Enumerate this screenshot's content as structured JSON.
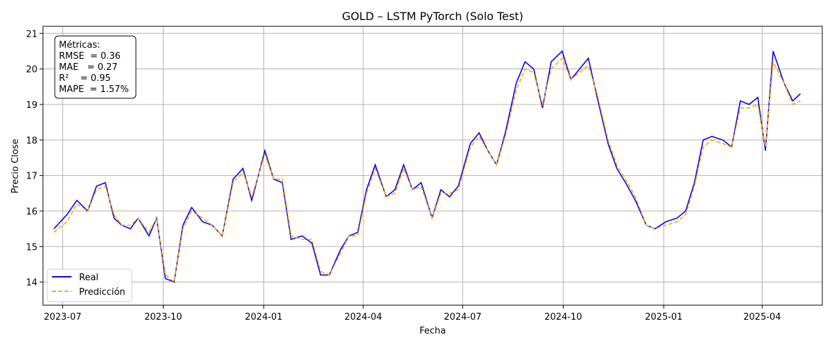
{
  "chart_data": {
    "type": "line",
    "title": "GOLD – LSTM PyTorch (Solo Test)",
    "xlabel": "Fecha",
    "ylabel": "Precio Close",
    "xlim": [
      "2023-06-13",
      "2025-05-26"
    ],
    "ylim": [
      13.35,
      21.2
    ],
    "x_ticks": [
      "2023-07-01",
      "2023-10-01",
      "2024-01-01",
      "2024-04-01",
      "2024-07-01",
      "2024-10-01",
      "2025-01-01",
      "2025-04-01"
    ],
    "x_tick_labels": [
      "2023-07",
      "2023-10",
      "2024-01",
      "2024-04",
      "2024-07",
      "2024-10",
      "2025-01",
      "2025-04"
    ],
    "y_ticks": [
      14,
      15,
      16,
      17,
      18,
      19,
      20,
      21
    ],
    "grid": true,
    "legend_position": "bottom-left",
    "metrics": {
      "header": "Métricas:",
      "lines": [
        "RMSE  = 0.36",
        "MAE   = 0.27",
        "R²    = 0.95",
        "MAPE  = 1.57%"
      ]
    },
    "x": [
      "2023-06-23",
      "2023-07-05",
      "2023-07-14",
      "2023-07-24",
      "2023-08-01",
      "2023-08-09",
      "2023-08-17",
      "2023-08-24",
      "2023-09-01",
      "2023-09-08",
      "2023-09-18",
      "2023-09-25",
      "2023-10-03",
      "2023-10-11",
      "2023-10-19",
      "2023-10-27",
      "2023-11-06",
      "2023-11-15",
      "2023-11-24",
      "2023-12-04",
      "2023-12-13",
      "2023-12-21",
      "2024-01-02",
      "2024-01-10",
      "2024-01-18",
      "2024-01-26",
      "2024-02-05",
      "2024-02-14",
      "2024-02-22",
      "2024-03-01",
      "2024-03-11",
      "2024-03-19",
      "2024-03-27",
      "2024-04-04",
      "2024-04-12",
      "2024-04-22",
      "2024-04-30",
      "2024-05-08",
      "2024-05-16",
      "2024-05-24",
      "2024-06-03",
      "2024-06-11",
      "2024-06-19",
      "2024-06-27",
      "2024-07-08",
      "2024-07-16",
      "2024-07-24",
      "2024-08-01",
      "2024-08-09",
      "2024-08-19",
      "2024-08-27",
      "2024-09-04",
      "2024-09-12",
      "2024-09-20",
      "2024-09-30",
      "2024-10-08",
      "2024-10-16",
      "2024-10-24",
      "2024-11-01",
      "2024-11-11",
      "2024-11-19",
      "2024-11-27",
      "2024-12-06",
      "2024-12-16",
      "2024-12-24",
      "2025-01-03",
      "2025-01-13",
      "2025-01-21",
      "2025-01-29",
      "2025-02-06",
      "2025-02-14",
      "2025-02-24",
      "2025-03-04",
      "2025-03-12",
      "2025-03-20",
      "2025-03-28",
      "2025-04-04",
      "2025-04-11",
      "2025-04-21",
      "2025-04-29",
      "2025-05-06"
    ],
    "series": [
      {
        "name": "Real",
        "color": "#0000ff",
        "dash": "solid",
        "values": [
          15.5,
          15.9,
          16.3,
          16.0,
          16.7,
          16.8,
          15.8,
          15.6,
          15.5,
          15.8,
          15.3,
          15.8,
          14.1,
          14.0,
          15.6,
          16.1,
          15.7,
          15.6,
          15.3,
          16.9,
          17.2,
          16.3,
          17.7,
          16.9,
          16.8,
          15.2,
          15.3,
          15.1,
          14.2,
          14.2,
          14.9,
          15.3,
          15.4,
          16.6,
          17.3,
          16.4,
          16.6,
          17.3,
          16.6,
          16.8,
          15.8,
          16.6,
          16.4,
          16.7,
          17.9,
          18.2,
          17.7,
          17.3,
          18.2,
          19.6,
          20.2,
          20.0,
          18.9,
          20.2,
          20.5,
          19.7,
          20.0,
          20.3,
          19.2,
          17.9,
          17.2,
          16.8,
          16.3,
          15.6,
          15.5,
          15.7,
          15.8,
          16.0,
          16.8,
          18.0,
          18.1,
          18.0,
          17.8,
          19.1,
          19.0,
          19.2,
          17.7,
          20.5,
          19.6,
          19.1,
          19.3
        ]
      },
      {
        "name": "Predicción",
        "color": "#ffa500",
        "dash": "dashed",
        "values": [
          15.4,
          15.7,
          16.2,
          16.0,
          16.6,
          16.7,
          15.9,
          15.6,
          15.6,
          15.8,
          15.4,
          15.8,
          14.2,
          14.0,
          15.5,
          16.0,
          15.8,
          15.6,
          15.3,
          16.8,
          17.1,
          16.4,
          17.6,
          16.9,
          16.9,
          15.3,
          15.2,
          15.2,
          14.3,
          14.2,
          14.8,
          15.3,
          15.3,
          16.5,
          17.2,
          16.4,
          16.5,
          17.2,
          16.6,
          16.7,
          15.8,
          16.5,
          16.5,
          16.6,
          17.8,
          18.1,
          17.7,
          17.3,
          18.1,
          19.4,
          20.0,
          19.9,
          19.0,
          20.0,
          20.3,
          19.7,
          19.9,
          20.1,
          19.3,
          18.0,
          17.3,
          16.9,
          16.4,
          15.6,
          15.5,
          15.6,
          15.7,
          15.9,
          16.7,
          17.8,
          18.0,
          17.9,
          17.8,
          18.9,
          18.9,
          19.0,
          17.8,
          20.2,
          19.6,
          19.0,
          19.1
        ]
      }
    ]
  }
}
